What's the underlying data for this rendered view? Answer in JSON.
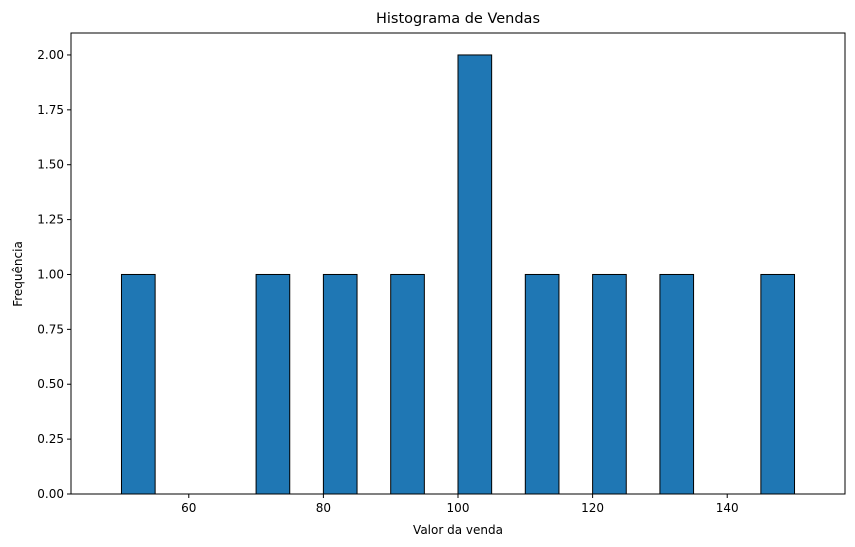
{
  "chart_data": {
    "type": "bar",
    "title": "Histograma de Vendas",
    "xlabel": "Valor da venda",
    "ylabel": "Frequência",
    "bins": [
      {
        "x0": 50,
        "x1": 55,
        "count": 1
      },
      {
        "x0": 55,
        "x1": 60,
        "count": 0
      },
      {
        "x0": 60,
        "x1": 65,
        "count": 0
      },
      {
        "x0": 65,
        "x1": 70,
        "count": 0
      },
      {
        "x0": 70,
        "x1": 75,
        "count": 1
      },
      {
        "x0": 75,
        "x1": 80,
        "count": 0
      },
      {
        "x0": 80,
        "x1": 85,
        "count": 1
      },
      {
        "x0": 85,
        "x1": 90,
        "count": 0
      },
      {
        "x0": 90,
        "x1": 95,
        "count": 1
      },
      {
        "x0": 95,
        "x1": 100,
        "count": 0
      },
      {
        "x0": 100,
        "x1": 105,
        "count": 2
      },
      {
        "x0": 105,
        "x1": 110,
        "count": 0
      },
      {
        "x0": 110,
        "x1": 115,
        "count": 1
      },
      {
        "x0": 115,
        "x1": 120,
        "count": 0
      },
      {
        "x0": 120,
        "x1": 125,
        "count": 1
      },
      {
        "x0": 125,
        "x1": 130,
        "count": 0
      },
      {
        "x0": 130,
        "x1": 135,
        "count": 1
      },
      {
        "x0": 135,
        "x1": 140,
        "count": 0
      },
      {
        "x0": 140,
        "x1": 145,
        "count": 0
      },
      {
        "x0": 145,
        "x1": 150,
        "count": 1
      }
    ],
    "xlim": [
      42.5,
      157.5
    ],
    "ylim": [
      0,
      2.1
    ],
    "xticks": [
      60,
      80,
      100,
      120,
      140
    ],
    "yticks": [
      "0.00",
      "0.25",
      "0.50",
      "0.75",
      "1.00",
      "1.25",
      "1.50",
      "1.75",
      "2.00"
    ],
    "grid": false,
    "legend": "none",
    "bar_color": "#1f77b4",
    "edge_color": "#000000"
  }
}
